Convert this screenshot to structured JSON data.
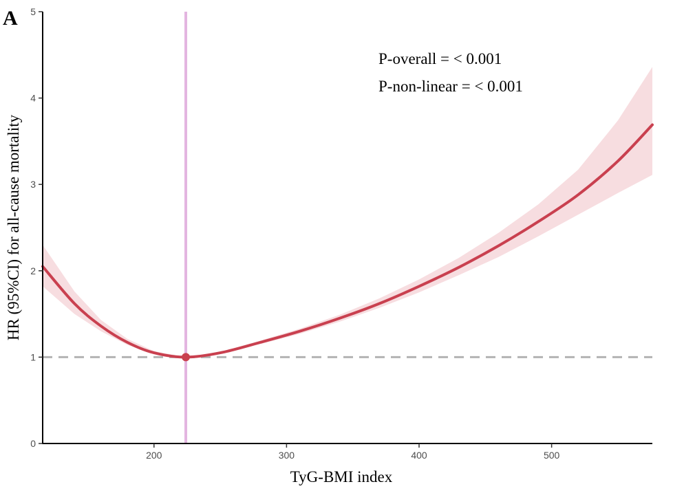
{
  "chart_data": {
    "type": "line",
    "panel_label": "A",
    "xlabel": "TyG-BMI index",
    "ylabel": "HR (95%CI) for all-cause mortality",
    "xlim": [
      116,
      576
    ],
    "ylim": [
      0,
      5
    ],
    "x_ticks": [
      200,
      300,
      400,
      500
    ],
    "y_ticks": [
      0,
      1,
      2,
      3,
      4,
      5
    ],
    "annotations": [
      "P-overall = < 0.001",
      "P-non-linear = < 0.001"
    ],
    "reference_line": {
      "y": 1,
      "style": "dashed",
      "color": "#b3b3b3"
    },
    "reference_point": {
      "x": 224,
      "y": 1.0
    },
    "vertical_line": {
      "x": 224,
      "color": "#e3b5e0"
    },
    "colors": {
      "curve": "#c9404f",
      "band": "#f7dde0",
      "axis": "#000000"
    },
    "series": [
      {
        "x": [
          116,
          140,
          160,
          180,
          200,
          224,
          250,
          280,
          310,
          340,
          370,
          400,
          430,
          460,
          490,
          520,
          550,
          576
        ],
        "y": [
          2.05,
          1.62,
          1.36,
          1.17,
          1.05,
          1.0,
          1.05,
          1.17,
          1.3,
          1.45,
          1.62,
          1.82,
          2.04,
          2.29,
          2.57,
          2.88,
          3.27,
          3.69
        ],
        "lower": [
          1.82,
          1.5,
          1.3,
          1.14,
          1.04,
          1.0,
          1.04,
          1.15,
          1.27,
          1.41,
          1.57,
          1.75,
          1.95,
          2.16,
          2.4,
          2.65,
          2.9,
          3.11
        ],
        "upper": [
          2.3,
          1.76,
          1.43,
          1.21,
          1.07,
          1.0,
          1.06,
          1.19,
          1.33,
          1.49,
          1.68,
          1.9,
          2.15,
          2.44,
          2.77,
          3.17,
          3.74,
          4.36
        ]
      }
    ]
  }
}
